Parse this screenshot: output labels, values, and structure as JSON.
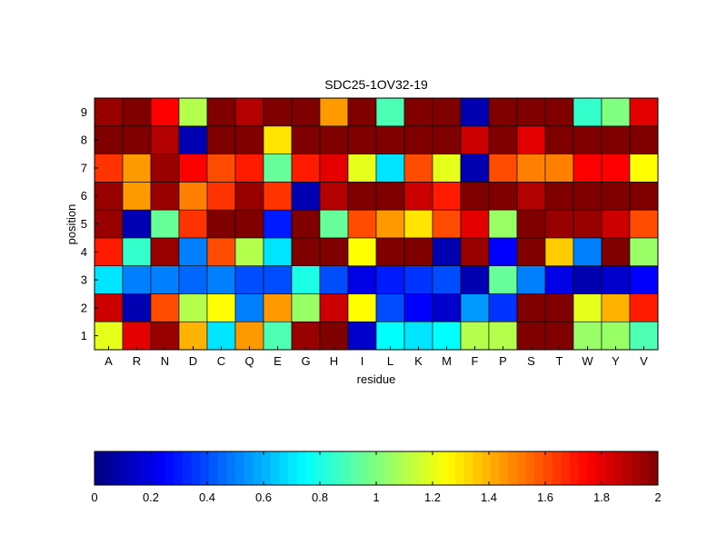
{
  "chart_data": {
    "type": "heatmap",
    "title": "SDC25-1OV32-19",
    "xlabel": "residue",
    "ylabel": "position",
    "x_categories": [
      "A",
      "R",
      "N",
      "D",
      "C",
      "Q",
      "E",
      "G",
      "H",
      "I",
      "L",
      "K",
      "M",
      "F",
      "P",
      "S",
      "T",
      "W",
      "Y",
      "V"
    ],
    "y_categories": [
      "1",
      "2",
      "3",
      "4",
      "5",
      "6",
      "7",
      "8",
      "9"
    ],
    "values": [
      [
        1.2,
        1.8,
        1.95,
        1.4,
        0.7,
        1.45,
        0.9,
        1.95,
        2.0,
        0.15,
        0.75,
        0.7,
        0.75,
        1.1,
        1.1,
        2.0,
        2.0,
        1.05,
        1.05,
        0.9
      ],
      [
        1.85,
        0.1,
        1.6,
        1.1,
        1.25,
        0.5,
        1.45,
        1.05,
        1.85,
        1.25,
        0.4,
        0.25,
        0.15,
        0.55,
        0.35,
        2.0,
        2.0,
        1.2,
        1.4,
        1.7
      ],
      [
        0.7,
        0.5,
        0.5,
        0.45,
        0.5,
        0.4,
        0.4,
        0.8,
        0.4,
        0.2,
        0.3,
        0.35,
        0.4,
        0.1,
        0.95,
        0.5,
        0.2,
        0.1,
        0.15,
        0.25
      ],
      [
        1.7,
        0.85,
        1.95,
        0.5,
        1.6,
        1.1,
        0.7,
        2.0,
        2.0,
        1.25,
        2.0,
        2.0,
        0.1,
        1.95,
        0.25,
        2.0,
        1.35,
        0.5,
        2.0,
        1.05
      ],
      [
        1.95,
        0.1,
        0.95,
        1.65,
        2.0,
        2.0,
        0.3,
        2.0,
        0.95,
        1.6,
        1.45,
        1.3,
        1.6,
        1.8,
        1.05,
        2.0,
        1.95,
        1.95,
        1.85,
        1.6
      ],
      [
        1.95,
        1.45,
        1.95,
        1.5,
        1.65,
        1.95,
        1.65,
        0.1,
        1.9,
        2.0,
        2.0,
        1.85,
        1.7,
        2.0,
        2.0,
        1.9,
        2.0,
        2.0,
        2.0,
        2.0
      ],
      [
        1.65,
        1.45,
        1.95,
        1.75,
        1.6,
        1.7,
        0.95,
        1.7,
        1.8,
        1.2,
        0.7,
        1.6,
        1.2,
        0.1,
        1.6,
        1.5,
        1.5,
        1.75,
        1.75,
        1.25
      ],
      [
        2.0,
        2.0,
        1.9,
        0.1,
        2.0,
        2.0,
        1.3,
        2.0,
        2.0,
        2.0,
        2.0,
        2.0,
        2.0,
        1.85,
        2.0,
        1.8,
        2.0,
        2.0,
        2.0,
        2.0
      ],
      [
        1.95,
        2.0,
        1.75,
        1.1,
        2.0,
        1.9,
        2.0,
        2.0,
        1.45,
        2.0,
        0.9,
        2.0,
        2.0,
        0.1,
        2.0,
        2.0,
        2.0,
        0.85,
        1.0,
        1.8
      ]
    ],
    "colorbar": {
      "colormap": "jet",
      "range": [
        0,
        2
      ],
      "tick_labels": [
        "0",
        "0.2",
        "0.4",
        "0.6",
        "0.8",
        "1",
        "1.2",
        "1.4",
        "1.6",
        "1.8",
        "2"
      ],
      "orientation": "horizontal",
      "placement": "bottom"
    },
    "grid": false
  }
}
